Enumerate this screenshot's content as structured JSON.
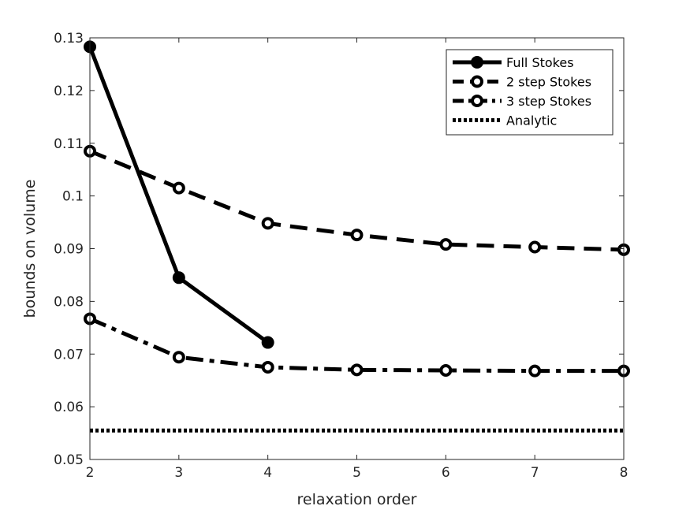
{
  "chart_data": {
    "type": "line",
    "title": "",
    "xlabel": "relaxation order",
    "ylabel": "bounds on volume",
    "xlim": [
      2,
      8
    ],
    "ylim": [
      0.05,
      0.13
    ],
    "xticks": [
      2,
      3,
      4,
      5,
      6,
      7,
      8
    ],
    "yticks": [
      0.05,
      0.06,
      0.07,
      0.08,
      0.09,
      0.1,
      0.11,
      0.12,
      0.13
    ],
    "ytick_labels": [
      "0.05",
      "0.06",
      "0.07",
      "0.08",
      "0.09",
      "0.1",
      "0.11",
      "0.12",
      "0.13"
    ],
    "grid": false,
    "legend_position": "top-right",
    "series": [
      {
        "name": "Full Stokes",
        "style": "solid",
        "marker": "filled-circle",
        "x": [
          2,
          3,
          4
        ],
        "y": [
          0.1283,
          0.0845,
          0.0722
        ]
      },
      {
        "name": "2 step Stokes",
        "style": "dashed",
        "marker": "open-circle",
        "x": [
          2,
          3,
          4,
          5,
          6,
          7,
          8
        ],
        "y": [
          0.1085,
          0.1015,
          0.0948,
          0.0926,
          0.0908,
          0.0903,
          0.0898
        ]
      },
      {
        "name": "3 step Stokes",
        "style": "dash-dot",
        "marker": "open-circle",
        "x": [
          2,
          3,
          4,
          5,
          6,
          7,
          8
        ],
        "y": [
          0.0767,
          0.0694,
          0.0675,
          0.067,
          0.0669,
          0.0668,
          0.0668
        ]
      },
      {
        "name": "Analytic",
        "style": "dotted",
        "marker": "none",
        "x": [
          2,
          8
        ],
        "y": [
          0.0555,
          0.0555
        ]
      }
    ],
    "colors": {
      "line": "#000000",
      "axis": "#262626",
      "background": "#ffffff"
    }
  }
}
